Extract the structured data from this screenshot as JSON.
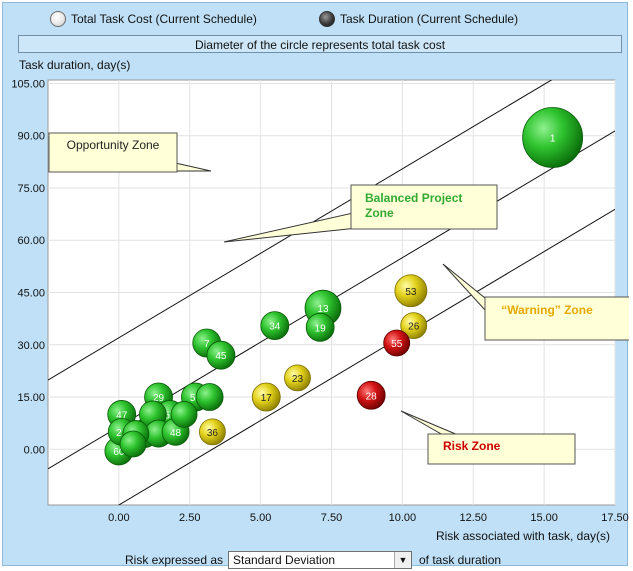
{
  "toolbar": {
    "options": [
      {
        "label": "Total Task Cost (Current Schedule)",
        "selected": false
      },
      {
        "label": "Task Duration (Current Schedule)",
        "selected": true
      }
    ],
    "caption": "Diameter of the circle represents total task cost"
  },
  "chart_data": {
    "type": "scatter",
    "title": "",
    "xlabel": "Risk associated with task, day(s)",
    "ylabel": "Task duration, day(s)",
    "xlim": [
      -2.5,
      17.5
    ],
    "ylim": [
      -16,
      106
    ],
    "x_ticks": [
      "0.00",
      "2.50",
      "5.00",
      "7.50",
      "10.00",
      "12.50",
      "15.00",
      "17.50"
    ],
    "y_ticks": [
      "0.00",
      "15.00",
      "30.00",
      "45.00",
      "60.00",
      "75.00",
      "90.00",
      "105.00"
    ],
    "grid": true,
    "zone_lines": [
      {
        "intercept": 32.0,
        "slope": 4.85
      },
      {
        "intercept": 6.5,
        "slope": 4.85
      },
      {
        "intercept": -16.0,
        "slope": 4.85
      }
    ],
    "zones": [
      {
        "label": "Opportunity Zone",
        "color": "#222222"
      },
      {
        "label": "Balanced Project Zone",
        "color": "#33aa33"
      },
      {
        "label": "“Warning” Zone",
        "color": "#e6a800"
      },
      {
        "label": "Risk Zone",
        "color": "#cc0000"
      }
    ],
    "bubbles": [
      {
        "label": "1",
        "x": 15.3,
        "y": 89.5,
        "size": 5.0,
        "color": "green"
      },
      {
        "label": "53",
        "x": 10.3,
        "y": 45.5,
        "size": 2.2,
        "color": "yellow"
      },
      {
        "label": "26",
        "x": 10.4,
        "y": 35.5,
        "size": 1.6,
        "color": "yellow"
      },
      {
        "label": "55",
        "x": 9.8,
        "y": 30.5,
        "size": 1.6,
        "color": "red"
      },
      {
        "label": "28",
        "x": 8.9,
        "y": 15.5,
        "size": 1.8,
        "color": "red"
      },
      {
        "label": "23",
        "x": 6.3,
        "y": 20.5,
        "size": 1.6,
        "color": "yellow"
      },
      {
        "label": "17",
        "x": 5.2,
        "y": 15.0,
        "size": 1.8,
        "color": "yellow"
      },
      {
        "label": "36",
        "x": 3.3,
        "y": 5.0,
        "size": 1.6,
        "color": "yellow"
      },
      {
        "label": "13",
        "x": 7.2,
        "y": 40.5,
        "size": 2.6,
        "color": "green"
      },
      {
        "label": "19",
        "x": 7.1,
        "y": 35.0,
        "size": 1.8,
        "color": "green"
      },
      {
        "label": "34",
        "x": 5.5,
        "y": 35.5,
        "size": 1.8,
        "color": "green"
      },
      {
        "label": "7",
        "x": 3.1,
        "y": 30.5,
        "size": 1.8,
        "color": "green"
      },
      {
        "label": "45",
        "x": 3.6,
        "y": 27.0,
        "size": 1.8,
        "color": "green"
      },
      {
        "label": "29",
        "x": 1.4,
        "y": 15.0,
        "size": 1.8,
        "color": "green"
      },
      {
        "label": "56",
        "x": 2.7,
        "y": 15.0,
        "size": 1.8,
        "color": "green"
      },
      {
        "label": "",
        "x": 3.2,
        "y": 15.0,
        "size": 1.7,
        "color": "green"
      },
      {
        "label": "47",
        "x": 0.1,
        "y": 10.0,
        "size": 1.8,
        "color": "green"
      },
      {
        "label": "",
        "x": 1.2,
        "y": 10.0,
        "size": 1.7,
        "color": "green"
      },
      {
        "label": "57",
        "x": 1.8,
        "y": 10.0,
        "size": 1.8,
        "color": "green"
      },
      {
        "label": "",
        "x": 2.3,
        "y": 10.0,
        "size": 1.6,
        "color": "green"
      },
      {
        "label": "21",
        "x": 0.1,
        "y": 5.0,
        "size": 1.7,
        "color": "green"
      },
      {
        "label": "",
        "x": 0.6,
        "y": 4.5,
        "size": 1.6,
        "color": "green"
      },
      {
        "label": "59",
        "x": 0.9,
        "y": 4.5,
        "size": 1.8,
        "color": "green"
      },
      {
        "label": "",
        "x": 1.4,
        "y": 4.5,
        "size": 1.7,
        "color": "green"
      },
      {
        "label": "48",
        "x": 2.0,
        "y": 5.0,
        "size": 1.7,
        "color": "green"
      },
      {
        "label": "",
        "x": 0.5,
        "y": 1.5,
        "size": 1.6,
        "color": "green"
      },
      {
        "label": "60",
        "x": 0.0,
        "y": -0.5,
        "size": 1.8,
        "color": "green"
      }
    ]
  },
  "footer": {
    "prefix": "Risk expressed as",
    "select_value": "Standard Deviation",
    "suffix": "of task duration"
  }
}
